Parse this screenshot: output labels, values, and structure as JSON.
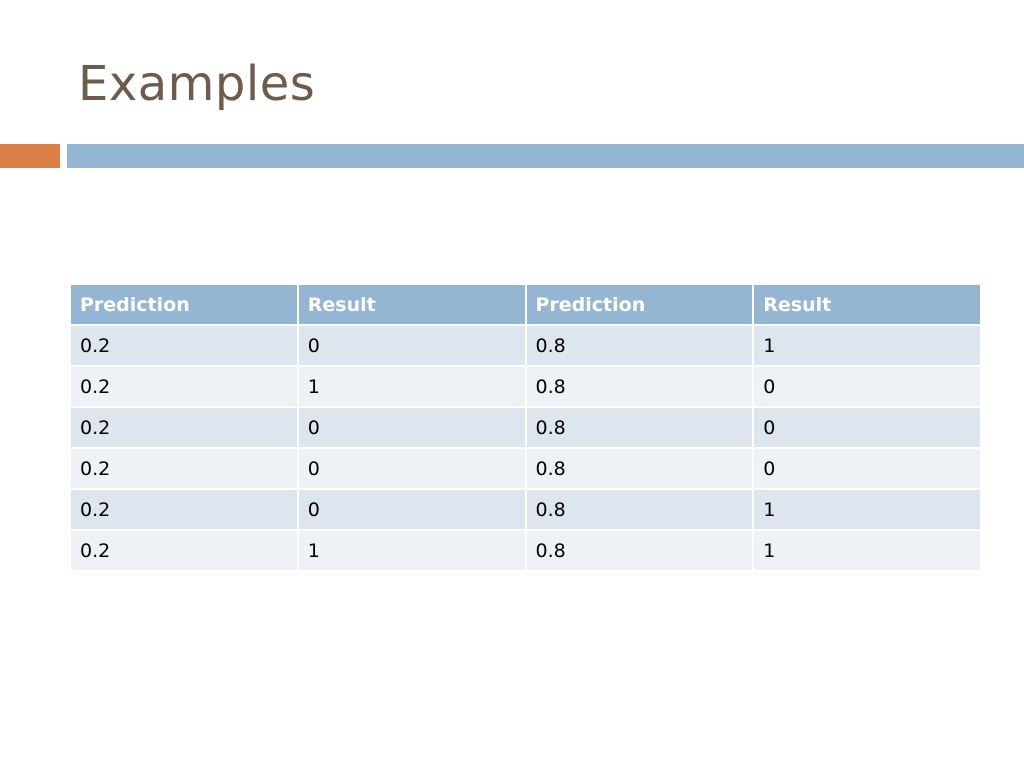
{
  "slide": {
    "title": "Examples"
  },
  "table": {
    "headers": [
      "Prediction",
      "Result",
      "Prediction",
      "Result"
    ],
    "rows": [
      [
        "0.2",
        "0",
        "0.8",
        "1"
      ],
      [
        "0.2",
        "1",
        "0.8",
        "0"
      ],
      [
        "0.2",
        "0",
        "0.8",
        "0"
      ],
      [
        "0.2",
        "0",
        "0.8",
        "0"
      ],
      [
        "0.2",
        "0",
        "0.8",
        "1"
      ],
      [
        "0.2",
        "1",
        "0.8",
        "1"
      ]
    ]
  },
  "colors": {
    "title": "#6e5b4e",
    "accent_orange": "#dd8047",
    "accent_blue": "#94b6d2",
    "row_dark": "#dde5ee",
    "row_light": "#eef2f7"
  }
}
